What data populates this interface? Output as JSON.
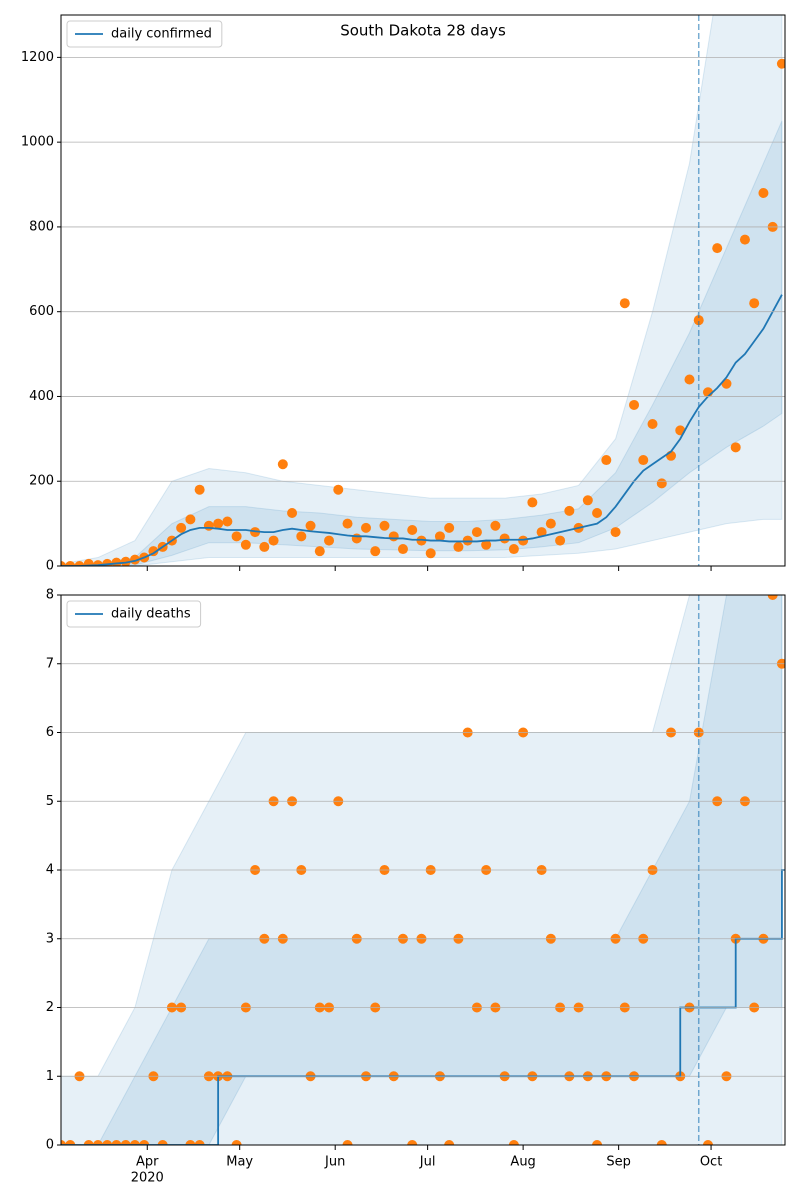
{
  "chart_data": [
    {
      "type": "line",
      "title": "South Dakota 28 days",
      "x": [
        64,
        67,
        70,
        73,
        76,
        79,
        82,
        85,
        88,
        91,
        94,
        97,
        100,
        103,
        106,
        109,
        112,
        115,
        118,
        121,
        124,
        127,
        130,
        133,
        136,
        139,
        142,
        145,
        148,
        151,
        154,
        157,
        160,
        163,
        166,
        169,
        172,
        175,
        178,
        181,
        184,
        187,
        190,
        193,
        196,
        199,
        202,
        205,
        208,
        211,
        214,
        217,
        220,
        223,
        226,
        229,
        232,
        235,
        238,
        241,
        244,
        247,
        250,
        253,
        256,
        259,
        262,
        265,
        268,
        271,
        274,
        277,
        280,
        283,
        286,
        289,
        292,
        295,
        298
      ],
      "series": [
        {
          "name": "daily confirmed",
          "color": "#1f77b4",
          "values": [
            0,
            0,
            0,
            1,
            2,
            4,
            6,
            8,
            12,
            20,
            30,
            45,
            60,
            75,
            85,
            90,
            90,
            88,
            85,
            85,
            85,
            82,
            80,
            80,
            85,
            88,
            85,
            82,
            80,
            78,
            75,
            72,
            70,
            70,
            68,
            66,
            65,
            65,
            62,
            62,
            60,
            60,
            58,
            58,
            58,
            58,
            60,
            60,
            62,
            62,
            62,
            65,
            70,
            75,
            80,
            85,
            90,
            95,
            100,
            115,
            140,
            170,
            200,
            225,
            240,
            255,
            270,
            300,
            340,
            375,
            400,
            420,
            445,
            480,
            500,
            530,
            560,
            600,
            640
          ]
        }
      ],
      "points": {
        "color": "#ff7f0e",
        "values": [
          0,
          0,
          0,
          5,
          2,
          5,
          8,
          10,
          15,
          20,
          35,
          45,
          60,
          90,
          110,
          180,
          95,
          100,
          105,
          70,
          50,
          80,
          45,
          60,
          240,
          125,
          70,
          95,
          35,
          60,
          180,
          100,
          65,
          90,
          35,
          95,
          70,
          40,
          85,
          60,
          30,
          70,
          90,
          45,
          60,
          80,
          50,
          95,
          65,
          40,
          60,
          150,
          80,
          100,
          60,
          130,
          90,
          155,
          125,
          250,
          80,
          620,
          380,
          250,
          335,
          195,
          260,
          320,
          440,
          580,
          410,
          750,
          430,
          280,
          770,
          620,
          880,
          800,
          1185
        ]
      },
      "band_x": [
        64,
        76,
        88,
        100,
        112,
        124,
        136,
        148,
        160,
        172,
        184,
        196,
        208,
        220,
        232,
        244,
        256,
        268,
        280,
        292,
        298
      ],
      "bands": [
        {
          "lower": [
            0,
            0,
            0,
            10,
            20,
            20,
            20,
            20,
            20,
            20,
            20,
            20,
            20,
            25,
            30,
            40,
            60,
            80,
            100,
            110,
            110
          ],
          "upper": [
            5,
            20,
            60,
            200,
            230,
            220,
            200,
            190,
            180,
            170,
            160,
            160,
            160,
            170,
            190,
            300,
            600,
            950,
            1500,
            1500,
            1500
          ]
        },
        {
          "lower": [
            0,
            0,
            2,
            25,
            55,
            55,
            50,
            45,
            40,
            38,
            36,
            36,
            38,
            45,
            55,
            90,
            150,
            220,
            280,
            330,
            360
          ],
          "upper": [
            0,
            5,
            20,
            100,
            140,
            140,
            130,
            125,
            115,
            110,
            105,
            105,
            110,
            120,
            135,
            220,
            380,
            550,
            750,
            950,
            1050
          ]
        }
      ],
      "xlim": [
        64,
        299
      ],
      "ylim": [
        0,
        1300
      ],
      "yticks": [
        0,
        200,
        400,
        600,
        800,
        1000,
        1200
      ],
      "vline": 271,
      "grid": true,
      "legend": "upper left"
    },
    {
      "type": "line",
      "drawstyle": "steps-post",
      "x": [
        64,
        67,
        70,
        73,
        76,
        79,
        82,
        85,
        88,
        91,
        94,
        97,
        100,
        103,
        106,
        109,
        112,
        115,
        118,
        121,
        124,
        127,
        130,
        133,
        136,
        139,
        142,
        145,
        148,
        151,
        154,
        157,
        160,
        163,
        166,
        169,
        172,
        175,
        178,
        181,
        184,
        187,
        190,
        193,
        196,
        199,
        202,
        205,
        208,
        211,
        214,
        217,
        220,
        223,
        226,
        229,
        232,
        235,
        238,
        241,
        244,
        247,
        250,
        253,
        256,
        259,
        262,
        265,
        268,
        271,
        274,
        277,
        280,
        283,
        286,
        289,
        292,
        295,
        298
      ],
      "series": [
        {
          "name": "daily deaths",
          "color": "#1f77b4",
          "values": [
            0,
            0,
            0,
            0,
            0,
            0,
            0,
            0,
            0,
            0,
            0,
            0,
            0,
            0,
            0,
            0,
            0,
            1,
            1,
            1,
            1,
            1,
            1,
            1,
            1,
            1,
            1,
            1,
            1,
            1,
            1,
            1,
            1,
            1,
            1,
            1,
            1,
            1,
            1,
            1,
            1,
            1,
            1,
            1,
            1,
            1,
            1,
            1,
            1,
            1,
            1,
            1,
            1,
            1,
            1,
            1,
            1,
            1,
            1,
            1,
            1,
            1,
            1,
            1,
            1,
            1,
            1,
            2,
            2,
            2,
            2,
            2,
            2,
            3,
            3,
            3,
            3,
            3,
            4
          ]
        }
      ],
      "points": {
        "color": "#ff7f0e",
        "values": [
          0,
          0,
          1,
          0,
          0,
          0,
          0,
          0,
          0,
          0,
          1,
          0,
          2,
          2,
          0,
          0,
          1,
          1,
          1,
          0,
          2,
          4,
          3,
          5,
          3,
          5,
          4,
          1,
          2,
          2,
          5,
          0,
          3,
          1,
          2,
          4,
          1,
          3,
          0,
          3,
          4,
          1,
          0,
          3,
          6,
          2,
          4,
          2,
          1,
          0,
          6,
          1,
          4,
          3,
          2,
          1,
          2,
          1,
          0,
          1,
          3,
          2,
          1,
          3,
          4,
          0,
          6,
          1,
          2,
          6,
          0,
          5,
          1,
          3,
          5,
          2,
          3,
          8,
          7
        ]
      },
      "band_x": [
        64,
        76,
        88,
        100,
        112,
        124,
        136,
        148,
        160,
        172,
        184,
        196,
        208,
        220,
        232,
        244,
        256,
        268,
        280,
        292,
        298
      ],
      "bands": [
        {
          "lower": [
            0,
            0,
            0,
            0,
            0,
            0,
            0,
            0,
            0,
            0,
            0,
            0,
            0,
            0,
            0,
            0,
            0,
            0,
            0,
            0,
            0
          ],
          "upper": [
            1,
            1,
            2,
            4,
            5,
            6,
            6,
            6,
            6,
            6,
            6,
            6,
            6,
            6,
            6,
            6,
            6,
            8,
            9,
            9,
            9
          ]
        },
        {
          "lower": [
            0,
            0,
            0,
            0,
            0,
            1,
            1,
            1,
            1,
            1,
            1,
            1,
            1,
            1,
            1,
            1,
            1,
            1,
            2,
            2,
            2
          ],
          "upper": [
            0,
            0,
            1,
            2,
            3,
            3,
            3,
            3,
            3,
            3,
            3,
            3,
            3,
            3,
            3,
            3,
            4,
            5,
            8,
            9,
            9
          ]
        }
      ],
      "xlim": [
        64,
        299
      ],
      "ylim": [
        0,
        8
      ],
      "yticks": [
        0,
        1,
        2,
        3,
        4,
        5,
        6,
        7,
        8
      ],
      "xticks": [
        {
          "value": 92,
          "label": "Apr"
        },
        {
          "value": 122,
          "label": "May"
        },
        {
          "value": 153,
          "label": "Jun"
        },
        {
          "value": 183,
          "label": "Jul"
        },
        {
          "value": 214,
          "label": "Aug"
        },
        {
          "value": 245,
          "label": "Sep"
        },
        {
          "value": 275,
          "label": "Oct"
        }
      ],
      "x_sublabel": "2020",
      "vline": 271,
      "grid": true,
      "legend": "upper left"
    }
  ]
}
